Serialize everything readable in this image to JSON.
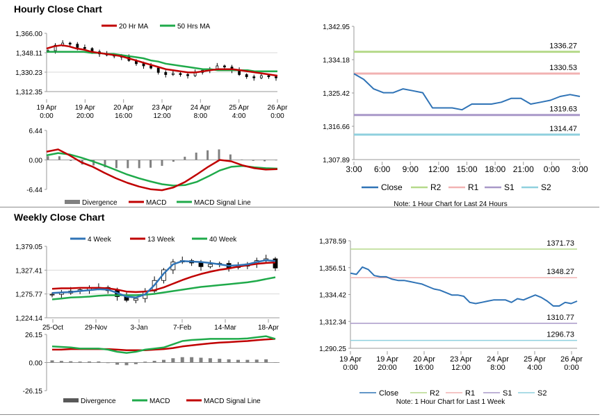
{
  "titles": {
    "hourly": "Hourly Close Chart",
    "weekly": "Weekly Close Chart"
  },
  "colors": {
    "ma_red": "#c00000",
    "ma_green": "#1faa4a",
    "close_blue": "#2f73b6",
    "r2": "#b5d98a",
    "r1": "#f2b2b2",
    "s1": "#a898c8",
    "s2": "#8fd0de",
    "divergence": "#808080",
    "candle_line": "#000000",
    "axis": "#9a9a9a"
  },
  "chart_data": [
    {
      "id": "hourly-price",
      "type": "candlestick",
      "legend": [
        "20 Hr MA",
        "50 Hrs MA"
      ],
      "yticks": [
        "1,366.00",
        "1,348.11",
        "1,330.23",
        "1,312.35"
      ],
      "ylim": [
        1312.35,
        1366.0
      ],
      "xticks": [
        [
          "19 Apr",
          "0:00"
        ],
        [
          "19 Apr",
          "20:00"
        ],
        [
          "20 Apr",
          "16:00"
        ],
        [
          "23 Apr",
          "12:00"
        ],
        [
          "24 Apr",
          "8:00"
        ],
        [
          "25 Apr",
          "4:00"
        ],
        [
          "26 Apr",
          "0:00"
        ]
      ],
      "series": [
        {
          "name": "20 Hr MA",
          "values": [
            1352,
            1354,
            1355,
            1354,
            1352,
            1351,
            1349,
            1348,
            1347,
            1346,
            1345,
            1343,
            1341,
            1339,
            1337,
            1335,
            1333,
            1332,
            1331,
            1330,
            1330,
            1331,
            1332,
            1333,
            1333,
            1333,
            1332,
            1331,
            1330,
            1329,
            1328,
            1327
          ]
        },
        {
          "name": "50 Hrs MA",
          "values": [
            1349,
            1349,
            1349,
            1349,
            1349,
            1349,
            1348,
            1348,
            1347,
            1347,
            1346,
            1345,
            1344,
            1343,
            1341,
            1340,
            1338,
            1337,
            1336,
            1335,
            1334,
            1333,
            1333,
            1332,
            1332,
            1332,
            1332,
            1332,
            1331,
            1331,
            1331,
            1331
          ]
        }
      ],
      "close": [
        1350,
        1355,
        1357,
        1356,
        1353,
        1352,
        1349,
        1347,
        1346,
        1345,
        1344,
        1341,
        1338,
        1336,
        1334,
        1330,
        1328,
        1329,
        1328,
        1327,
        1330,
        1332,
        1333,
        1336,
        1335,
        1332,
        1328,
        1326,
        1325,
        1327,
        1326,
        1325
      ]
    },
    {
      "id": "hourly-macd",
      "type": "macd",
      "legend": [
        "Divergence",
        "MACD",
        "MACD Signal Line"
      ],
      "yticks": [
        "6.44",
        "0.00",
        "-6.44"
      ],
      "ylim": [
        -6.44,
        6.44
      ],
      "series": [
        {
          "name": "MACD",
          "values": [
            1.8,
            2.3,
            1.0,
            -0.5,
            -1.5,
            -2.8,
            -4.0,
            -5.0,
            -5.8,
            -6.4,
            -6.6,
            -6.0,
            -4.8,
            -3.2,
            -1.5,
            0.0,
            -0.3,
            -1.2,
            -1.8,
            -2.1,
            -2.0
          ]
        },
        {
          "name": "MACD Signal Line",
          "values": [
            1.0,
            1.5,
            1.2,
            0.5,
            -0.3,
            -1.2,
            -2.2,
            -3.2,
            -4.0,
            -4.7,
            -5.3,
            -5.6,
            -5.5,
            -4.8,
            -3.6,
            -2.3,
            -1.5,
            -1.3,
            -1.6,
            -1.8,
            -1.9
          ]
        },
        {
          "name": "Divergence",
          "values": [
            0.8,
            0.8,
            -0.2,
            -1.0,
            -1.2,
            -1.6,
            -1.8,
            -1.8,
            -1.8,
            -1.7,
            -1.3,
            -0.4,
            0.7,
            1.6,
            2.1,
            2.3,
            1.2,
            0.1,
            -0.2,
            -0.3,
            -0.1
          ]
        }
      ]
    },
    {
      "id": "hourly-pivot",
      "type": "line",
      "yticks": [
        "1,342.95",
        "1,334.18",
        "1,325.42",
        "1,316.66",
        "1,307.89"
      ],
      "ylim": [
        1307.89,
        1342.95
      ],
      "xticks": [
        "3:00",
        "6:00",
        "9:00",
        "12:00",
        "15:00",
        "18:00",
        "21:00",
        "0:00",
        "3:00"
      ],
      "levels": [
        {
          "name": "R2",
          "value": 1336.27,
          "label": "1336.27"
        },
        {
          "name": "R1",
          "value": 1330.53,
          "label": "1330.53"
        },
        {
          "name": "S1",
          "value": 1319.63,
          "label": "1319.63"
        },
        {
          "name": "S2",
          "value": 1314.47,
          "label": "1314.47"
        }
      ],
      "close": [
        1330.5,
        1329.0,
        1326.5,
        1325.5,
        1325.5,
        1326.5,
        1326.0,
        1325.5,
        1321.5,
        1321.5,
        1321.5,
        1321.0,
        1322.5,
        1322.5,
        1322.5,
        1323.0,
        1324.0,
        1324.0,
        1322.5,
        1323.0,
        1323.5,
        1324.5,
        1325.0,
        1324.5
      ],
      "legend": [
        "Close",
        "R2",
        "R1",
        "S1",
        "S2"
      ],
      "note": "Note: 1 Hour Chart for Last 24 Hours"
    },
    {
      "id": "weekly-price",
      "type": "candlestick",
      "legend": [
        "4 Week",
        "13 Week",
        "40 Week"
      ],
      "yticks": [
        "1,379.05",
        "1,327.41",
        "1,275.77",
        "1,224.14"
      ],
      "ylim": [
        1224.14,
        1379.05
      ],
      "xticks": [
        "25-Oct",
        "29-Nov",
        "3-Jan",
        "7-Feb",
        "14-Mar",
        "18-Apr"
      ],
      "series": [
        {
          "name": "4 Week",
          "values": [
            1278,
            1279,
            1280,
            1282,
            1284,
            1286,
            1285,
            1278,
            1270,
            1268,
            1275,
            1295,
            1320,
            1340,
            1347,
            1346,
            1345,
            1343,
            1340,
            1337,
            1338,
            1340,
            1345,
            1349,
            1347
          ]
        },
        {
          "name": "13 Week",
          "values": [
            1287,
            1288,
            1288,
            1289,
            1289,
            1289,
            1288,
            1285,
            1281,
            1280,
            1281,
            1284,
            1290,
            1298,
            1306,
            1313,
            1319,
            1324,
            1328,
            1331,
            1335,
            1338,
            1341,
            1343,
            1344
          ]
        },
        {
          "name": "40 Week",
          "values": [
            1264,
            1266,
            1268,
            1269,
            1270,
            1272,
            1273,
            1273,
            1273,
            1273,
            1274,
            1276,
            1279,
            1282,
            1285,
            1288,
            1291,
            1293,
            1295,
            1297,
            1299,
            1301,
            1304,
            1308,
            1312
          ]
        }
      ],
      "close": [
        1275,
        1278,
        1282,
        1285,
        1288,
        1290,
        1283,
        1270,
        1262,
        1266,
        1282,
        1305,
        1328,
        1345,
        1348,
        1343,
        1335,
        1340,
        1342,
        1333,
        1336,
        1341,
        1348,
        1352,
        1332
      ]
    },
    {
      "id": "weekly-macd",
      "type": "macd",
      "legend": [
        "Divergence",
        "MACD",
        "MACD Signal Line"
      ],
      "yticks": [
        "26.15",
        "0.00",
        "-26.15"
      ],
      "ylim": [
        -26.15,
        26.15
      ],
      "series": [
        {
          "name": "MACD",
          "values": [
            15,
            14.5,
            14,
            13,
            13,
            13,
            12,
            10,
            9,
            10,
            12,
            13,
            14,
            17,
            20,
            21,
            21.5,
            22,
            22,
            22,
            22,
            22.5,
            23.5,
            24.5,
            22
          ]
        },
        {
          "name": "MACD Signal Line",
          "values": [
            12,
            12,
            12.5,
            12.5,
            12.5,
            12.5,
            12.5,
            12,
            11.5,
            11.5,
            11.5,
            12,
            12.5,
            13.5,
            15,
            16,
            17,
            17.8,
            18.5,
            19,
            19.5,
            20,
            20.8,
            21.5,
            22
          ]
        },
        {
          "name": "Divergence",
          "values": [
            2,
            1.5,
            1.2,
            0.9,
            1,
            1,
            -0.5,
            -2,
            -2.5,
            -1.5,
            0.8,
            1.6,
            2.5,
            4,
            5,
            5,
            4.5,
            4,
            3.5,
            3,
            2.5,
            2.5,
            2.7,
            3,
            0
          ]
        }
      ]
    },
    {
      "id": "weekly-pivot",
      "type": "line",
      "yticks": [
        "1,378.59",
        "1,356.51",
        "1,334.42",
        "1,312.34",
        "1,290.25"
      ],
      "ylim": [
        1290.25,
        1378.59
      ],
      "xticks": [
        [
          "19 Apr",
          "0:00"
        ],
        [
          "19 Apr",
          "20:00"
        ],
        [
          "20 Apr",
          "16:00"
        ],
        [
          "23 Apr",
          "12:00"
        ],
        [
          "24 Apr",
          "8:00"
        ],
        [
          "25 Apr",
          "4:00"
        ],
        [
          "26 Apr",
          "0:00"
        ]
      ],
      "levels": [
        {
          "name": "R2",
          "value": 1371.73,
          "label": "1371.73"
        },
        {
          "name": "R1",
          "value": 1348.27,
          "label": "1348.27"
        },
        {
          "name": "S1",
          "value": 1310.77,
          "label": "1310.77"
        },
        {
          "name": "S2",
          "value": 1296.73,
          "label": "1296.73"
        }
      ],
      "close": [
        1352,
        1351,
        1357,
        1355,
        1350,
        1349,
        1349,
        1347,
        1346,
        1346,
        1345,
        1344,
        1343,
        1341,
        1339,
        1338,
        1336,
        1334,
        1334,
        1333,
        1328,
        1327,
        1328,
        1329,
        1330,
        1330,
        1330,
        1328,
        1331,
        1330,
        1332,
        1334,
        1332,
        1329,
        1325,
        1325,
        1328,
        1327,
        1329
      ],
      "legend": [
        "Close",
        "R2",
        "R1",
        "S1",
        "S2"
      ],
      "note": "Note: 1 Hour Chart for Last 1 Week"
    }
  ]
}
